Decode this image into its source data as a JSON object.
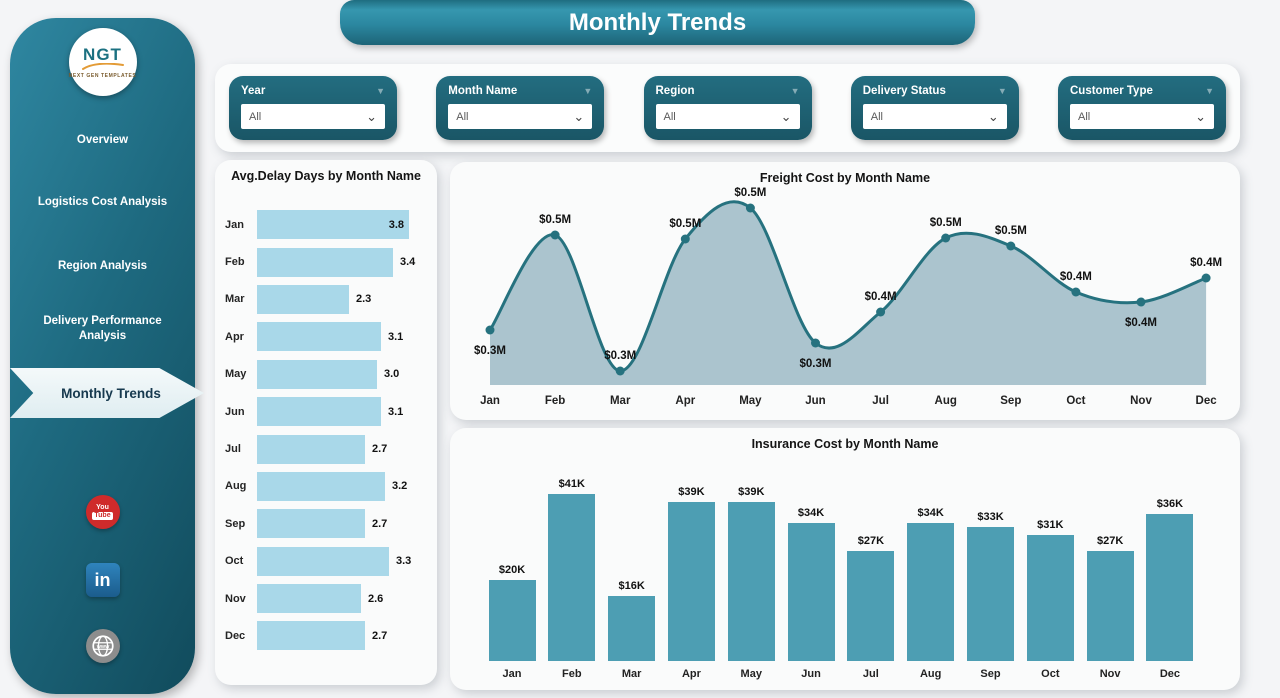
{
  "page": {
    "title": "Monthly Trends"
  },
  "sidebar": {
    "logo": {
      "text": "NGT",
      "subtext": "NEXT GEN TEMPLATES"
    },
    "items": [
      {
        "label": "Overview",
        "active": false
      },
      {
        "label": "Logistics Cost Analysis",
        "active": false
      },
      {
        "label": "Region Analysis",
        "active": false
      },
      {
        "label": "Delivery Performance Analysis",
        "active": false
      },
      {
        "label": "Monthly Trends",
        "active": true
      }
    ],
    "social": [
      {
        "name": "youtube-icon"
      },
      {
        "name": "linkedin-icon"
      },
      {
        "name": "website-globe-icon"
      }
    ]
  },
  "filters": [
    {
      "label": "Year",
      "value": "All"
    },
    {
      "label": "Month Name",
      "value": "All"
    },
    {
      "label": "Region",
      "value": "All"
    },
    {
      "label": "Delivery Status",
      "value": "All"
    },
    {
      "label": "Customer Type",
      "value": "All"
    }
  ],
  "chart_data": [
    {
      "type": "bar",
      "orientation": "horizontal",
      "title": "Avg.Delay Days by Month Name",
      "categories": [
        "Jan",
        "Feb",
        "Mar",
        "Apr",
        "May",
        "Jun",
        "Jul",
        "Aug",
        "Sep",
        "Oct",
        "Nov",
        "Dec"
      ],
      "values": [
        3.8,
        3.4,
        2.3,
        3.1,
        3.0,
        3.1,
        2.7,
        3.2,
        2.7,
        3.3,
        2.6,
        2.7
      ],
      "labels": [
        "3.8",
        "3.4",
        "2.3",
        "3.1",
        "3.0",
        "3.1",
        "2.7",
        "3.2",
        "2.7",
        "3.3",
        "2.6",
        "2.7"
      ],
      "xlim": [
        0,
        3.8
      ],
      "bar_color": "#a9d8e9"
    },
    {
      "type": "area",
      "title": "Freight Cost by Month Name",
      "categories": [
        "Jan",
        "Feb",
        "Mar",
        "Apr",
        "May",
        "Jun",
        "Jul",
        "Aug",
        "Sep",
        "Oct",
        "Nov",
        "Dec"
      ],
      "values": [
        0.3,
        0.5,
        0.3,
        0.5,
        0.5,
        0.3,
        0.4,
        0.5,
        0.5,
        0.4,
        0.4,
        0.4
      ],
      "labels": [
        "$0.3M",
        "$0.5M",
        "$0.3M",
        "$0.5M",
        "$0.5M",
        "$0.3M",
        "$0.4M",
        "$0.5M",
        "$0.5M",
        "$0.4M",
        "$0.4M",
        "$0.4M"
      ],
      "unit": "$M",
      "line_color": "#26727f",
      "fill_color": "#a6c1cb",
      "labels_below_indices": [
        0,
        5,
        10
      ]
    },
    {
      "type": "bar",
      "orientation": "vertical",
      "title": "Insurance Cost by Month Name",
      "categories": [
        "Jan",
        "Feb",
        "Mar",
        "Apr",
        "May",
        "Jun",
        "Jul",
        "Aug",
        "Sep",
        "Oct",
        "Nov",
        "Dec"
      ],
      "values": [
        20,
        41,
        16,
        39,
        39,
        34,
        27,
        34,
        33,
        31,
        27,
        36
      ],
      "labels": [
        "$20K",
        "$41K",
        "$16K",
        "$39K",
        "$39K",
        "$34K",
        "$27K",
        "$34K",
        "$33K",
        "$31K",
        "$27K",
        "$36K"
      ],
      "ylim": [
        0,
        41
      ],
      "bar_color": "#4d9eb3"
    }
  ],
  "colors": {
    "sidebar_teal_dark": "#114b5c",
    "sidebar_teal_light": "#2f87a1",
    "accent_teal": "#1e6678",
    "active_item_bg": "#e9f3f6",
    "delay_bar": "#a9d8e9",
    "insurance_bar": "#4d9eb3",
    "freight_line": "#26727f",
    "freight_fill": "#a6c1cb",
    "card_bg": "#fafbfb",
    "page_bg": "#f4f5f7"
  }
}
